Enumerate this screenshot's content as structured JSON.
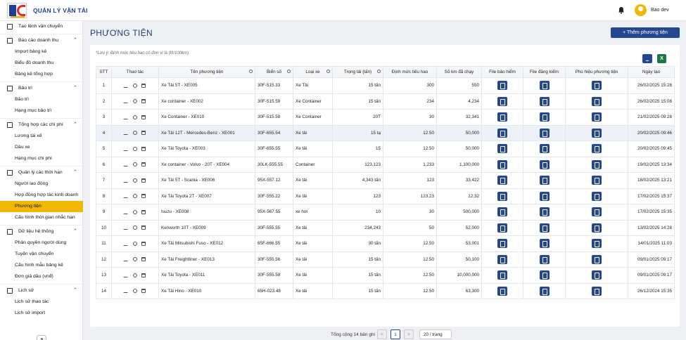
{
  "app": {
    "title": "QUẢN LÝ VẬN TẢI",
    "user": "Bao dev"
  },
  "sidebar": {
    "items": [
      {
        "label": "Tạo lệnh vận chuyển",
        "type": "group"
      },
      {
        "label": "Báo cáo doanh thu",
        "type": "group",
        "expanded": true
      },
      {
        "label": "Import bảng kê",
        "type": "sub"
      },
      {
        "label": "Biểu đồ doanh thu",
        "type": "sub"
      },
      {
        "label": "Bảng kê tổng hợp",
        "type": "sub"
      },
      {
        "label": "Bảo trì",
        "type": "group",
        "expanded": true
      },
      {
        "label": "Bảo trì",
        "type": "sub"
      },
      {
        "label": "Hạng mục bảo trì",
        "type": "sub"
      },
      {
        "label": "Tổng hợp các chi phí",
        "type": "group",
        "expanded": true
      },
      {
        "label": "Lương tài xế",
        "type": "sub"
      },
      {
        "label": "Dầu xe",
        "type": "sub"
      },
      {
        "label": "Hạng mục chi phí",
        "type": "sub"
      },
      {
        "label": "Quản lý các thời hạn",
        "type": "group",
        "expanded": true
      },
      {
        "label": "Người lao động",
        "type": "sub"
      },
      {
        "label": "Hợp đồng hợp tác kinh doanh",
        "type": "sub"
      },
      {
        "label": "Phương tiện",
        "type": "sub",
        "active": true
      },
      {
        "label": "Cấu hình thời gian nhắc hạn",
        "type": "sub"
      },
      {
        "label": "Dữ liệu hệ thống",
        "type": "group",
        "expanded": true
      },
      {
        "label": "Phân quyền người dùng",
        "type": "sub"
      },
      {
        "label": "Tuyến vận chuyển",
        "type": "sub"
      },
      {
        "label": "Cấu hình mẫu bảng kê",
        "type": "sub"
      },
      {
        "label": "Đơn giá dầu (vnđ)",
        "type": "sub"
      },
      {
        "label": "Lịch sử",
        "type": "group",
        "expanded": true
      },
      {
        "label": "Lịch sử thao tác",
        "type": "sub"
      },
      {
        "label": "Lịch sử import",
        "type": "sub"
      }
    ]
  },
  "page": {
    "title": "PHƯƠNG TIỆN",
    "add_button": "+  Thêm phương tiện",
    "note": "*Lưu ý: Định mức tiêu hao có đơn vị là (lít/100km).",
    "excel_label": "X"
  },
  "table": {
    "columns": [
      "STT",
      "Thao tác",
      "Tên phương tiện",
      "Biển số",
      "Loại xe",
      "Trọng tải (tấn)",
      "Định mức tiêu hao",
      "Số km đã chạy",
      "File bảo hiểm",
      "File đăng kiểm",
      "Phù hiệu phương tiện",
      "Ngày tạo"
    ],
    "rows": [
      {
        "stt": "1",
        "name": "Xe Tải 5T - XE005",
        "plate": "30F-515.33",
        "type": "Xe Tải",
        "load": "15 tấn",
        "fuel": "300",
        "km": "550",
        "date": "26/02/2025 15:28"
      },
      {
        "stt": "2",
        "name": "Xe container - XE002",
        "plate": "30F-515.59",
        "type": "Xe Container",
        "load": "15 tấn",
        "fuel": "234",
        "km": "4,234",
        "date": "26/02/2025 15:08"
      },
      {
        "stt": "3",
        "name": "Xe Container - XE010",
        "plate": "30F-515.58",
        "type": "Xe Container",
        "load": "20T",
        "fuel": "30",
        "km": "32,341",
        "date": "21/02/2025 09:28"
      },
      {
        "stt": "4",
        "name": "Xe Tải 12T - Mercedes-Benz - XE001",
        "plate": "30F-655.54",
        "type": "Xe tải",
        "load": "15 tạ",
        "fuel": "12.50",
        "km": "50,000",
        "date": "20/02/2025 09:46"
      },
      {
        "stt": "5",
        "name": "Xe Tải Toyota - XE003",
        "plate": "30F-655.55",
        "type": "Xe tải",
        "load": "15",
        "fuel": "12.50",
        "km": "50,000",
        "date": "20/02/2025 09:45"
      },
      {
        "stt": "6",
        "name": "Xe container - Volvo - 20T - XE004",
        "plate": "30LK-555.55",
        "type": "Container",
        "load": "123,123",
        "fuel": "1,233",
        "km": "1,100,000",
        "date": "19/02/2025 13:34"
      },
      {
        "stt": "7",
        "name": "Xe Tải 5T - Scania - XE006",
        "plate": "95X-557.12",
        "type": "Xe tải",
        "load": "4,343 tấn",
        "fuel": "123",
        "km": "33,422",
        "date": "18/02/2025 13:21"
      },
      {
        "stt": "8",
        "name": "Xe Tải Toyota 2T - XE007",
        "plate": "30F-555.22",
        "type": "Xe tải",
        "load": "123",
        "fuel": "123.23",
        "km": "12.32",
        "date": "17/02/2025 15:37"
      },
      {
        "stt": "9",
        "name": "Isuzu - XE008",
        "plate": "95X-567.55",
        "type": "xe hơi",
        "load": "10",
        "fuel": "30",
        "km": "500,000",
        "date": "17/02/2025 15:35"
      },
      {
        "stt": "10",
        "name": "Kenworth 10T - XE009",
        "plate": "30F-555.55",
        "type": "Xe tải",
        "load": "234,243",
        "fuel": "50",
        "km": "52,000",
        "date": "13/02/2025 14:28"
      },
      {
        "stt": "11",
        "name": "Xe Tải Mitsubishi Fuso - XE012",
        "plate": "65F-666.55",
        "type": "Xe tải",
        "load": "30 tấn",
        "fuel": "12.50",
        "km": "53,001",
        "date": "14/01/2025 11:03"
      },
      {
        "stt": "12",
        "name": "Xe Tải Freightliner - XE013",
        "plate": "30F-555.56",
        "type": "Xe tải",
        "load": "15 tấn",
        "fuel": "12.50",
        "km": "50,100",
        "date": "09/01/2025 09:17"
      },
      {
        "stt": "13",
        "name": "Xe Tải Toyota - XE011",
        "plate": "30F-555.58",
        "type": "Xe tải",
        "load": "15 tấn",
        "fuel": "12.50",
        "km": "10,000,000",
        "date": "09/01/2025 09:17"
      },
      {
        "stt": "14",
        "name": "Xe Tải Hino - XE010",
        "plate": "65H-023.48",
        "type": "Xe tải",
        "load": "15 tấn",
        "fuel": "12.50",
        "km": "63,300",
        "date": "26/12/2024 15:35"
      }
    ]
  },
  "pagination": {
    "total": "Tổng cộng 14 bản ghi",
    "prev": "<",
    "current": "1",
    "next": ">",
    "page_size": "20 / trang"
  },
  "colors": {
    "primary": "#24478f",
    "accent": "#f2b705",
    "excel": "#1d7a43"
  }
}
